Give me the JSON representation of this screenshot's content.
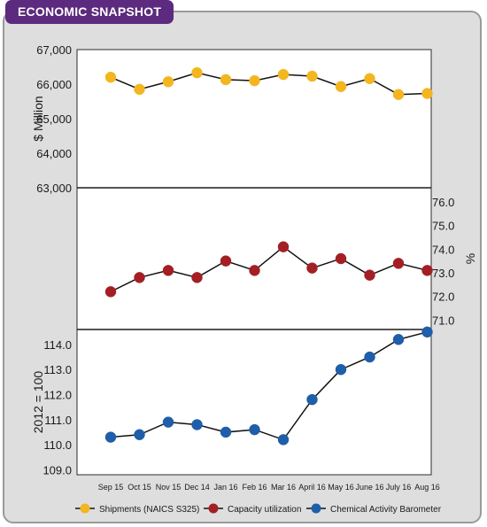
{
  "header": {
    "title": "ECONOMIC SNAPSHOT"
  },
  "colors": {
    "badge": "#5c2a7e",
    "shipments": "#f3b61f",
    "capacity": "#a31f24",
    "barometer": "#1f5ea8"
  },
  "chart_data": {
    "type": "line",
    "x": [
      "Sep 15",
      "Oct 15",
      "Nov 15",
      "Dec 14",
      "Jan 16",
      "Feb 16",
      "Mar 16",
      "April 16",
      "May 16",
      "June 16",
      "July 16",
      "Aug 16"
    ],
    "panels": [
      {
        "ylabel": "$ Million",
        "axis_side": "left",
        "ylim": [
          63000,
          67000
        ],
        "ticks": [
          67000,
          66000,
          65000,
          64000,
          63000
        ],
        "tick_labels": [
          "67,000",
          "66,000",
          "65,000",
          "64,000",
          "63,000"
        ],
        "series": {
          "name": "Shipments (NAICS S325)",
          "color": "#f3b61f",
          "values": [
            66200,
            65850,
            66070,
            66330,
            66130,
            66100,
            66280,
            66230,
            65930,
            66160,
            65700,
            65730
          ]
        }
      },
      {
        "ylabel": "%",
        "axis_side": "right",
        "ylim": [
          70.6,
          76.6
        ],
        "ticks": [
          76.0,
          75.0,
          74.0,
          73.0,
          72.0,
          71.0
        ],
        "tick_labels": [
          "76.0",
          "75.0",
          "74.0",
          "73.0",
          "72.0",
          "71.0"
        ],
        "series": {
          "name": "Capacity utilization",
          "color": "#a31f24",
          "values": [
            72.2,
            72.8,
            73.1,
            72.8,
            73.5,
            73.1,
            74.1,
            73.2,
            73.6,
            72.9,
            73.4,
            73.1
          ]
        }
      },
      {
        "ylabel": "2012 = 100",
        "axis_side": "left",
        "ylim": [
          108.8,
          114.6
        ],
        "ticks": [
          114.0,
          113.0,
          112.0,
          111.0,
          110.0,
          109.0
        ],
        "tick_labels": [
          "114.0",
          "113.0",
          "112.0",
          "111.0",
          "110.0",
          "109.0"
        ],
        "series": {
          "name": "Chemical Activity Barometer",
          "color": "#1f5ea8",
          "values": [
            110.3,
            110.4,
            110.9,
            110.8,
            110.5,
            110.6,
            110.2,
            111.8,
            113.0,
            113.5,
            114.2,
            114.5
          ]
        }
      }
    ],
    "legend": {
      "placement": "bottom",
      "entries": [
        "Shipments (NAICS S325)",
        "Capacity utilization",
        "Chemical Activity Barometer"
      ]
    }
  }
}
